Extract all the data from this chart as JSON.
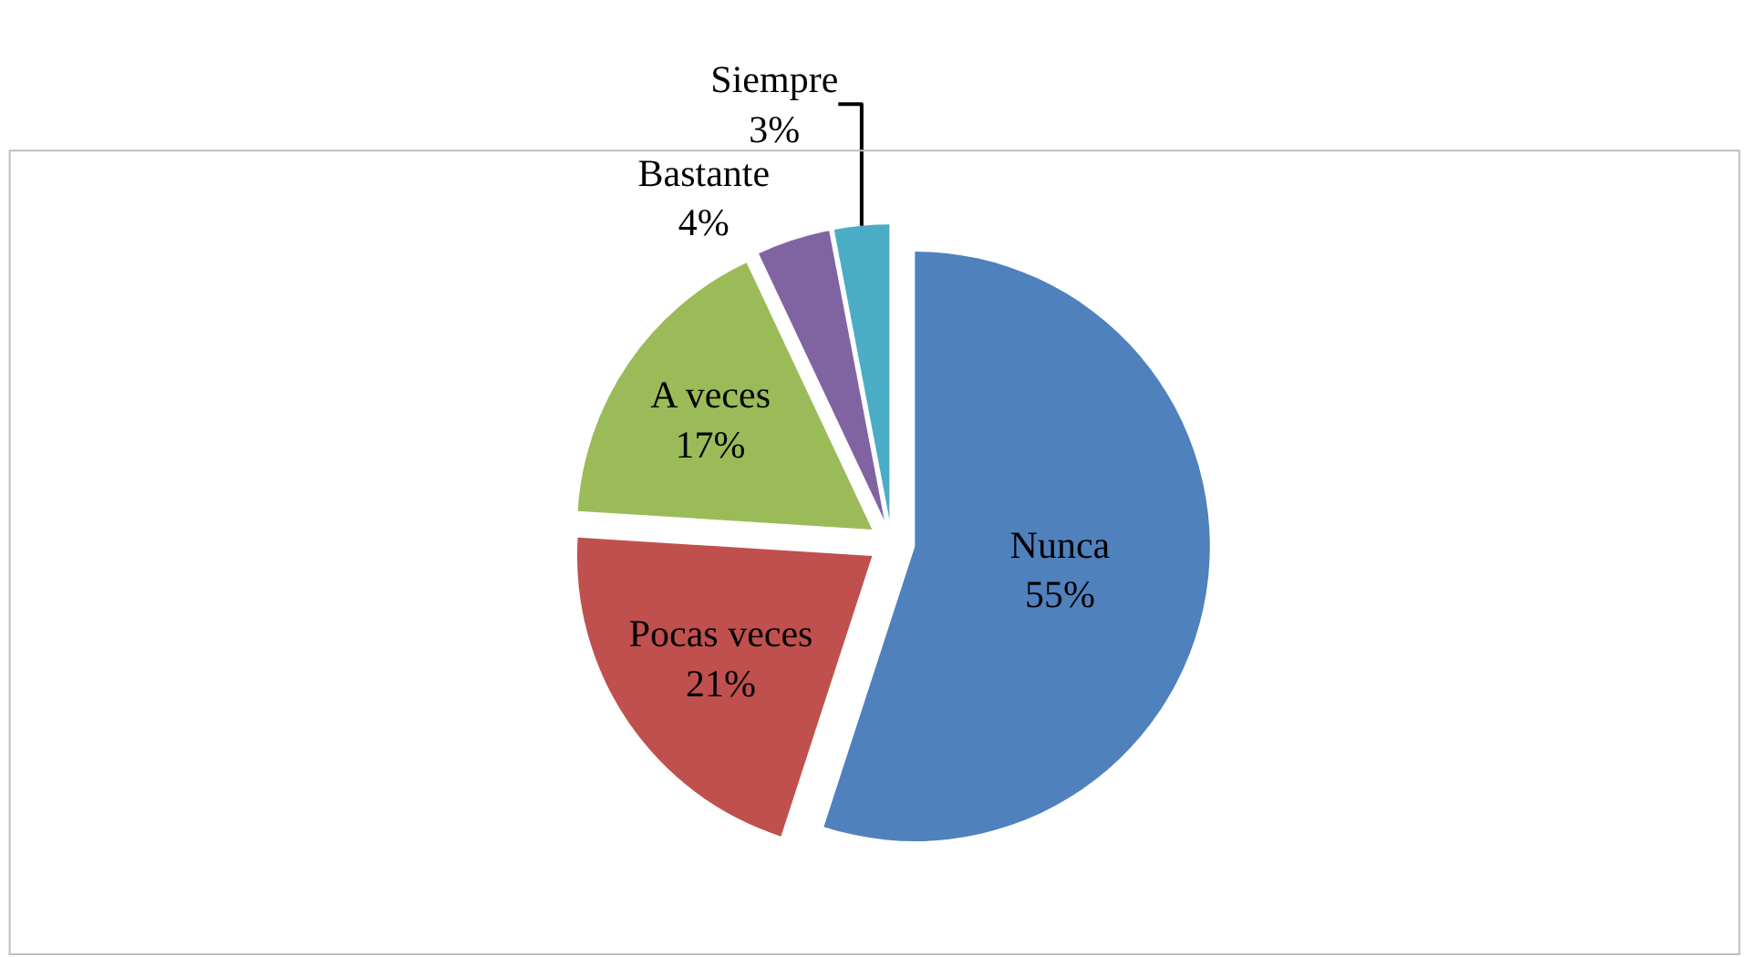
{
  "chart_data": {
    "type": "pie",
    "categories": [
      "Nunca",
      "Pocas veces",
      "A veces",
      "Bastante",
      "Siempre"
    ],
    "values": [
      55,
      21,
      17,
      4,
      3
    ],
    "value_labels": [
      "55%",
      "21%",
      "17%",
      "4%",
      "3%"
    ],
    "colors": [
      "#4f81bd",
      "#c0504d",
      "#9bbb59",
      "#8064a2",
      "#4bacc6"
    ],
    "legend": false
  }
}
